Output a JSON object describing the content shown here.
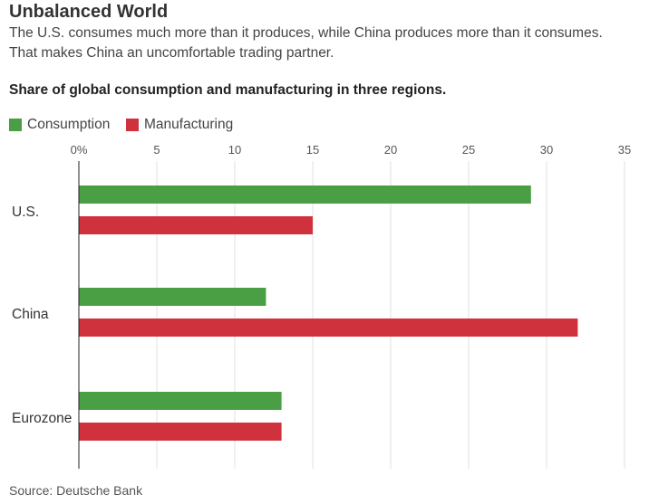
{
  "title": "Unbalanced World",
  "subtitle_lines": [
    "The U.S. consumes much more than it produces, while China produces more than it consumes.",
    "That makes China an uncomfortable trading partner."
  ],
  "source": "Source: Deutsche Bank",
  "colors": {
    "Consumption": "#4a9e44",
    "Manufacturing": "#d0323d"
  },
  "chart_data": {
    "type": "bar",
    "orientation": "horizontal",
    "title": "Share of global consumption and manufacturing in three regions.",
    "categories": [
      "U.S.",
      "China",
      "Eurozone"
    ],
    "series": [
      {
        "name": "Consumption",
        "values": [
          29,
          12,
          13
        ]
      },
      {
        "name": "Manufacturing",
        "values": [
          15,
          32,
          13
        ]
      }
    ],
    "xlim": [
      0,
      35
    ],
    "xticks": [
      "0%",
      "5",
      "10",
      "15",
      "20",
      "25",
      "30",
      "35"
    ],
    "grid": true,
    "legend": "top-left"
  }
}
